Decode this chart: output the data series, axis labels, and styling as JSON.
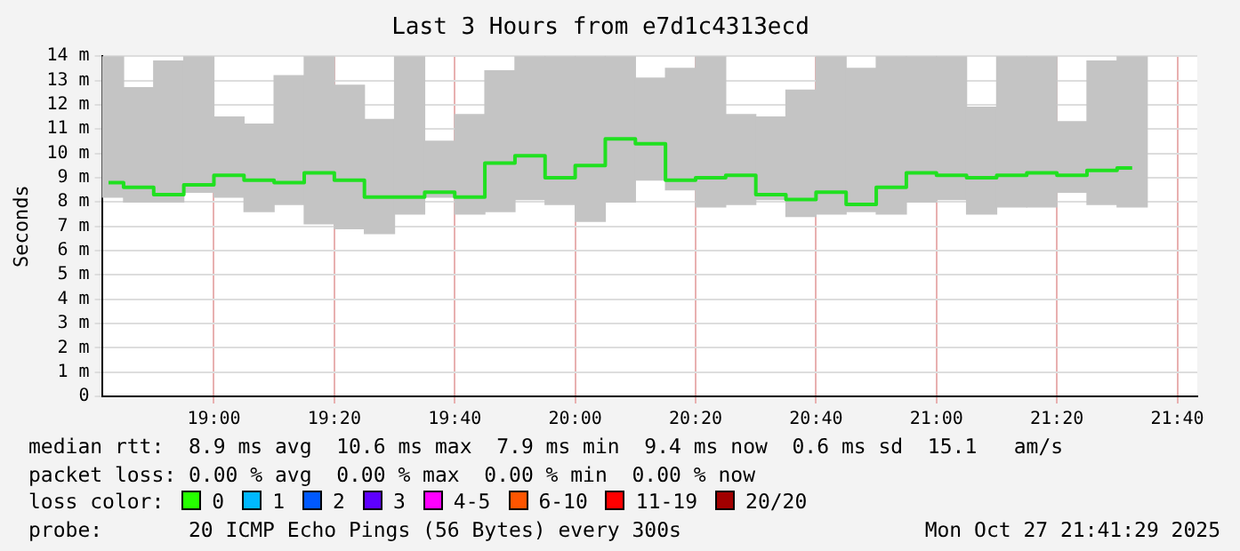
{
  "chart_data": {
    "type": "bar",
    "title": "Last 3 Hours from e7d1c4313ecd",
    "ylabel": "Seconds",
    "x": [
      18.7083,
      18.7917,
      18.875,
      18.9583,
      19.0417,
      19.125,
      19.2083,
      19.2917,
      19.375,
      19.4583,
      19.5417,
      19.625,
      19.7083,
      19.7917,
      19.875,
      19.9583,
      20.0417,
      20.125,
      20.2083,
      20.2917,
      20.375,
      20.4583,
      20.5417,
      20.625,
      20.7083,
      20.7917,
      20.875,
      20.9583,
      21.0417,
      21.125,
      21.2083,
      21.2917,
      21.375,
      21.4583,
      21.5417
    ],
    "series": [
      {
        "color": "#c4c4c4",
        "base": [
          8.2,
          8.0,
          8.0,
          8.4,
          8.2,
          7.6,
          7.9,
          7.1,
          6.9,
          6.7,
          7.5,
          8.2,
          7.5,
          7.6,
          8.1,
          7.9,
          7.2,
          8.0,
          8.9,
          8.5,
          7.8,
          7.9,
          8.1,
          7.4,
          7.5,
          7.6,
          7.5,
          8.0,
          8.1,
          7.5,
          7.8,
          7.8,
          8.4,
          7.9,
          7.8
        ],
        "values": [
          5.8,
          4.7,
          5.8,
          5.6,
          3.3,
          3.6,
          5.3,
          6.9,
          5.9,
          4.7,
          6.5,
          2.3,
          4.1,
          5.8,
          5.9,
          6.1,
          6.8,
          6.0,
          4.2,
          5.0,
          6.2,
          3.7,
          3.4,
          5.2,
          6.5,
          5.9,
          6.5,
          6.0,
          5.9,
          4.4,
          6.2,
          6.2,
          2.9,
          5.9,
          6.2
        ]
      },
      {
        "type": "step",
        "color": "#20e020",
        "values": [
          8.8,
          8.6,
          8.3,
          8.7,
          9.1,
          8.9,
          8.8,
          9.2,
          8.9,
          8.2,
          8.2,
          8.4,
          8.2,
          9.6,
          9.9,
          9.0,
          9.5,
          10.6,
          10.4,
          8.9,
          9.0,
          9.1,
          8.3,
          8.1,
          8.4,
          7.9,
          8.6,
          9.2,
          9.1,
          9.0,
          9.1,
          9.2,
          9.1,
          9.3,
          9.4
        ]
      }
    ],
    "xlim": [
      18.69,
      21.722
    ],
    "xticks": [
      {
        "value": 19,
        "label": "19:00"
      },
      {
        "value": 19.3333,
        "label": "19:20"
      },
      {
        "value": 19.6667,
        "label": "19:40"
      },
      {
        "value": 20,
        "label": "20:00"
      },
      {
        "value": 20.3333,
        "label": "20:20"
      },
      {
        "value": 20.6667,
        "label": "20:40"
      },
      {
        "value": 21,
        "label": "21:00"
      },
      {
        "value": 21.3333,
        "label": "21:20"
      },
      {
        "value": 21.6667,
        "label": "21:40"
      }
    ],
    "ylim": [
      0,
      14
    ],
    "yticks": [
      0,
      {
        "value": 1,
        "label": "1 m"
      },
      {
        "value": 2,
        "label": "2 m"
      },
      {
        "value": 3,
        "label": "3 m"
      },
      {
        "value": 4,
        "label": "4 m"
      },
      {
        "value": 5,
        "label": "5 m"
      },
      {
        "value": 6,
        "label": "6 m"
      },
      {
        "value": 7,
        "label": "7 m"
      },
      {
        "value": 8,
        "label": "8 m"
      },
      {
        "value": 9,
        "label": "9 m"
      },
      {
        "value": 10,
        "label": "10 m"
      },
      {
        "value": 11,
        "label": "11 m"
      },
      {
        "value": 12,
        "label": "12 m"
      },
      {
        "value": 13,
        "label": "13 m"
      },
      {
        "value": 14,
        "label": "14 m"
      }
    ],
    "grid": true,
    "marker": "none",
    "legend": false,
    "annotations": [
      "median rtt:  8.9 ms avg  10.6 ms max  7.9 ms min  9.4 ms now  0.6 ms sd  15.1   am/s",
      "packet loss: 0.00 % avg  0.00 % max  0.00 % min  0.00 % now",
      "loss color:",
      "0",
      "1",
      "2",
      "3",
      "4-5",
      "6-10",
      "11-19",
      "20/20",
      "probe:       20 ICMP Echo Pings (56 Bytes) every 300s",
      "Mon Oct 27 21:41:29 2025"
    ]
  }
}
